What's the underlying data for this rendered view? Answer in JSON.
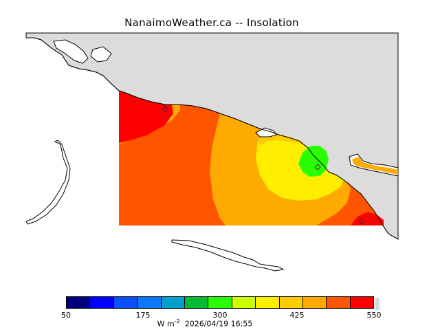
{
  "title": "NanaimoWeather.ca -- Insolation",
  "map": {
    "land_color": "#dcdcdc",
    "water_color": "#ffffff",
    "coast_color": "#000000",
    "station_markers": 3
  },
  "colorbar": {
    "colors": [
      "#00007f",
      "#0000ff",
      "#0a50ff",
      "#0a78ff",
      "#00a0cc",
      "#00bb33",
      "#29ff00",
      "#ccff00",
      "#ffee00",
      "#ffcc00",
      "#ffaa00",
      "#ff5500",
      "#ff0000"
    ],
    "tick_labels": [
      "50",
      "175",
      "300",
      "425",
      "550"
    ],
    "tick_values": [
      50,
      175,
      300,
      425,
      550
    ],
    "min": 50,
    "max": 550
  },
  "footer": {
    "unit_base": "W m",
    "unit_exponent": "-2",
    "timestamp": "2026/04/19 16:55"
  }
}
